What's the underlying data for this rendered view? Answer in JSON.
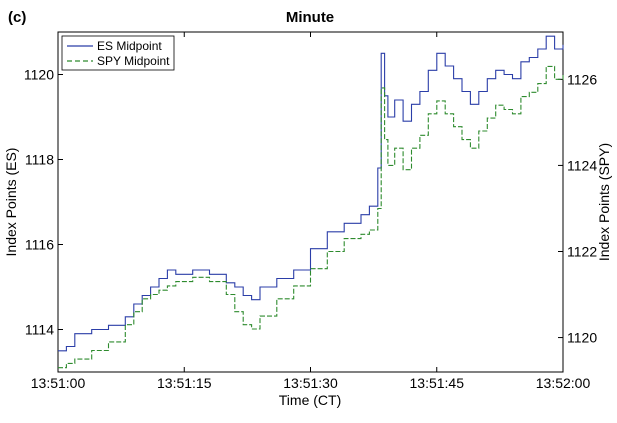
{
  "chart_data": {
    "type": "line",
    "panel_label": "(c)",
    "title": "Minute",
    "xlabel": "Time (CT)",
    "ylabel_left": "Index Points (ES)",
    "ylabel_right": "Index Points (SPY)",
    "x_ticks": [
      "13:51:00",
      "13:51:15",
      "13:51:30",
      "13:51:45",
      "13:52:00"
    ],
    "x_range_seconds": [
      0,
      60
    ],
    "y_left": {
      "lim": [
        1113.0,
        1121.0
      ],
      "ticks": [
        1114,
        1116,
        1118,
        1120
      ]
    },
    "y_right": {
      "lim": [
        1119.2,
        1127.1
      ],
      "ticks": [
        1120,
        1122,
        1124,
        1126
      ]
    },
    "grid": false,
    "legend": {
      "position": "top-left"
    },
    "series": [
      {
        "name": "ES Midpoint",
        "axis": "left",
        "color": "#2b3ea8",
        "style": "solid",
        "points": [
          [
            0,
            1113.5
          ],
          [
            1,
            1113.6
          ],
          [
            2,
            1113.9
          ],
          [
            4,
            1114.0
          ],
          [
            6,
            1114.1
          ],
          [
            8,
            1114.3
          ],
          [
            9,
            1114.6
          ],
          [
            10,
            1114.8
          ],
          [
            11,
            1115.0
          ],
          [
            12,
            1115.2
          ],
          [
            13,
            1115.4
          ],
          [
            14,
            1115.3
          ],
          [
            16,
            1115.4
          ],
          [
            18,
            1115.3
          ],
          [
            20,
            1115.1
          ],
          [
            21,
            1115.0
          ],
          [
            22,
            1114.8
          ],
          [
            23,
            1114.7
          ],
          [
            24,
            1115.0
          ],
          [
            26,
            1115.2
          ],
          [
            28,
            1115.4
          ],
          [
            30,
            1115.9
          ],
          [
            32,
            1116.3
          ],
          [
            34,
            1116.5
          ],
          [
            36,
            1116.7
          ],
          [
            37,
            1116.9
          ],
          [
            38,
            1117.8
          ],
          [
            38.4,
            1120.5
          ],
          [
            38.8,
            1119.5
          ],
          [
            39.2,
            1119.0
          ],
          [
            40,
            1119.4
          ],
          [
            41,
            1118.9
          ],
          [
            42,
            1119.3
          ],
          [
            43,
            1119.6
          ],
          [
            44,
            1120.1
          ],
          [
            45,
            1120.5
          ],
          [
            46,
            1120.2
          ],
          [
            47,
            1119.9
          ],
          [
            48,
            1119.6
          ],
          [
            49,
            1119.3
          ],
          [
            50,
            1119.6
          ],
          [
            51,
            1119.9
          ],
          [
            52,
            1120.1
          ],
          [
            53,
            1120.0
          ],
          [
            54,
            1119.9
          ],
          [
            55,
            1120.3
          ],
          [
            56,
            1120.4
          ],
          [
            57,
            1120.6
          ],
          [
            58,
            1120.9
          ],
          [
            59,
            1120.6
          ],
          [
            60,
            1120.7
          ]
        ]
      },
      {
        "name": "SPY Midpoint",
        "axis": "right",
        "color": "#2e8b2e",
        "style": "dashed",
        "points": [
          [
            0,
            1119.3
          ],
          [
            1,
            1119.4
          ],
          [
            2,
            1119.5
          ],
          [
            4,
            1119.7
          ],
          [
            6,
            1119.9
          ],
          [
            8,
            1120.3
          ],
          [
            9,
            1120.6
          ],
          [
            10,
            1120.9
          ],
          [
            11,
            1121.0
          ],
          [
            12,
            1121.1
          ],
          [
            13,
            1121.2
          ],
          [
            14,
            1121.3
          ],
          [
            16,
            1121.4
          ],
          [
            18,
            1121.3
          ],
          [
            20,
            1121.0
          ],
          [
            21,
            1120.6
          ],
          [
            22,
            1120.3
          ],
          [
            23,
            1120.2
          ],
          [
            24,
            1120.5
          ],
          [
            26,
            1120.9
          ],
          [
            28,
            1121.2
          ],
          [
            30,
            1121.6
          ],
          [
            32,
            1122.0
          ],
          [
            34,
            1122.3
          ],
          [
            36,
            1122.4
          ],
          [
            37,
            1122.5
          ],
          [
            38,
            1123.0
          ],
          [
            38.4,
            1125.8
          ],
          [
            38.8,
            1124.6
          ],
          [
            39.2,
            1124.0
          ],
          [
            40,
            1124.4
          ],
          [
            41,
            1123.9
          ],
          [
            42,
            1124.4
          ],
          [
            43,
            1124.7
          ],
          [
            44,
            1125.2
          ],
          [
            45,
            1125.5
          ],
          [
            46,
            1125.2
          ],
          [
            47,
            1124.9
          ],
          [
            48,
            1124.6
          ],
          [
            49,
            1124.4
          ],
          [
            50,
            1124.8
          ],
          [
            51,
            1125.1
          ],
          [
            52,
            1125.4
          ],
          [
            53,
            1125.3
          ],
          [
            54,
            1125.2
          ],
          [
            55,
            1125.6
          ],
          [
            56,
            1125.7
          ],
          [
            57,
            1125.9
          ],
          [
            58,
            1126.3
          ],
          [
            59,
            1126.0
          ],
          [
            60,
            1126.1
          ]
        ]
      }
    ]
  },
  "colors": {
    "es": "#2b3ea8",
    "spy": "#2e8b2e"
  }
}
